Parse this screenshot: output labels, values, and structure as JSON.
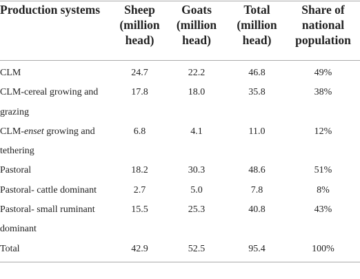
{
  "table": {
    "header": [
      "Production systems",
      "Sheep (million head)",
      "Goats (million head)",
      "Total (million head)",
      "Share of national population"
    ],
    "rows": [
      [
        {
          "text": "CLM"
        },
        "24.7",
        "22.2",
        "46.8",
        "49%"
      ],
      [
        {
          "text": "CLM-cereal growing and grazing"
        },
        "17.8",
        "18.0",
        "35.8",
        "38%"
      ],
      [
        {
          "prefix": "CLM-",
          "italic": "enset",
          "suffix": " growing and tethering"
        },
        "6.8",
        "4.1",
        "11.0",
        "12%"
      ],
      [
        {
          "text": "Pastoral"
        },
        "18.2",
        "30.3",
        "48.6",
        "51%"
      ],
      [
        {
          "text": "Pastoral- cattle dominant"
        },
        "2.7",
        "5.0",
        "7.8",
        "8%"
      ],
      [
        {
          "text": "Pastoral- small ruminant dominant"
        },
        "15.5",
        "25.3",
        "40.8",
        "43%"
      ],
      [
        {
          "text": "Total"
        },
        "42.9",
        "52.5",
        "95.4",
        "100%"
      ]
    ]
  }
}
